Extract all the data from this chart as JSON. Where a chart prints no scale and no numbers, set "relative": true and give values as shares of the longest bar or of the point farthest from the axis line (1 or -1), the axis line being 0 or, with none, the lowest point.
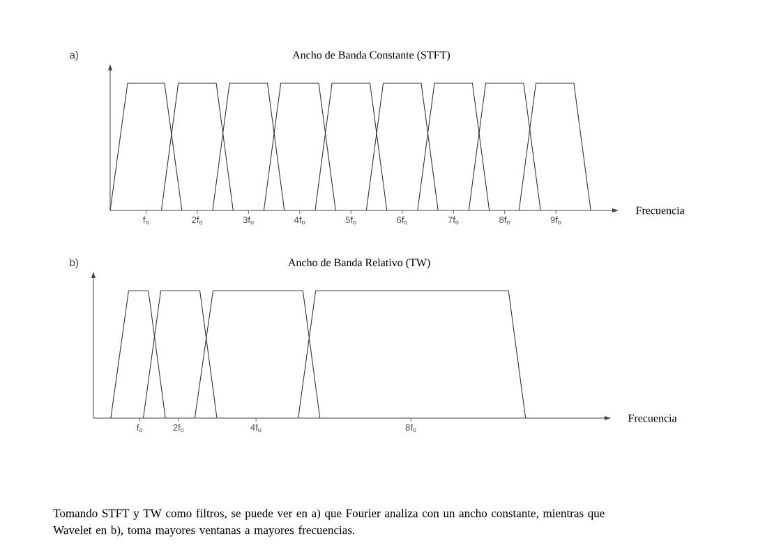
{
  "chart_data": [
    {
      "type": "line",
      "relative": true,
      "title": "Ancho de Banda Constante  (STFT)",
      "xlabel": "Frecuencia",
      "annotations": [
        "a)"
      ],
      "xlim": [
        0.3,
        10.1
      ],
      "xticks": [
        {
          "value": 1,
          "label": "f$_{o}$"
        },
        {
          "value": 2,
          "label": "2f$_{o}$"
        },
        {
          "value": 3,
          "label": "3f$_{o}$"
        },
        {
          "value": 4,
          "label": "4f$_{o}$"
        },
        {
          "value": 5,
          "label": "5f$_{o}$"
        },
        {
          "value": 6,
          "label": "6f$_{o}$"
        },
        {
          "value": 7,
          "label": "7f$_{o}$"
        },
        {
          "value": 8,
          "label": "8f$_{o}$"
        },
        {
          "value": 9,
          "label": "9f$_{o}$"
        }
      ],
      "series": [
        {
          "color": "#333333",
          "x": [
            0.3,
            0.64,
            1.36,
            1.7
          ],
          "values": [
            0,
            1,
            1,
            0
          ]
        },
        {
          "color": "#333333",
          "x": [
            1.3,
            1.63,
            2.37,
            2.7
          ],
          "values": [
            0,
            1,
            1,
            0
          ]
        },
        {
          "color": "#333333",
          "x": [
            2.3,
            2.63,
            3.37,
            3.7
          ],
          "values": [
            0,
            1,
            1,
            0
          ]
        },
        {
          "color": "#333333",
          "x": [
            3.3,
            3.63,
            4.37,
            4.7
          ],
          "values": [
            0,
            1,
            1,
            0
          ]
        },
        {
          "color": "#333333",
          "x": [
            4.3,
            4.63,
            5.37,
            5.7
          ],
          "values": [
            0,
            1,
            1,
            0
          ]
        },
        {
          "color": "#333333",
          "x": [
            5.3,
            5.63,
            6.37,
            6.7
          ],
          "values": [
            0,
            1,
            1,
            0
          ]
        },
        {
          "color": "#333333",
          "x": [
            6.3,
            6.63,
            7.37,
            7.7
          ],
          "values": [
            0,
            1,
            1,
            0
          ]
        },
        {
          "color": "#333333",
          "x": [
            7.3,
            7.63,
            8.37,
            8.7
          ],
          "values": [
            0,
            1,
            1,
            0
          ]
        },
        {
          "color": "#333333",
          "x": [
            8.28,
            8.61,
            9.35,
            9.68
          ],
          "values": [
            0,
            1,
            1,
            0
          ]
        }
      ]
    },
    {
      "type": "line",
      "relative": true,
      "title": "Ancho de Banda Relativo (TW)",
      "xlabel": "Frecuencia",
      "annotations": [
        "b)",
        "Tomando STFT y TW como filtros, se puede ver en a) que Fourier analiza con un ancho constante, mientras que Wavelet en b), toma mayores ventanas a mayores frecuencias."
      ],
      "xlim": [
        -0.2,
        13
      ],
      "xticks": [
        {
          "value": 1,
          "label": "f$_{o}$"
        },
        {
          "value": 2,
          "label": "2f$_{o}$"
        },
        {
          "value": 4,
          "label": "4f$_{o}$"
        },
        {
          "value": 8,
          "label": "8f$_{o}$"
        }
      ],
      "series": [
        {
          "color": "#333333",
          "x": [
            0.25,
            0.71,
            1.22,
            1.66
          ],
          "values": [
            0,
            1,
            1,
            0
          ]
        },
        {
          "color": "#333333",
          "x": [
            1.09,
            1.54,
            2.55,
            2.99
          ],
          "values": [
            0,
            1,
            1,
            0
          ]
        },
        {
          "color": "#333333",
          "x": [
            2.42,
            2.89,
            5.21,
            5.65
          ],
          "values": [
            0,
            1,
            1,
            0
          ]
        },
        {
          "color": "#333333",
          "x": [
            5.09,
            5.54,
            10.52,
            10.96
          ],
          "values": [
            0,
            1,
            1,
            0
          ]
        }
      ]
    }
  ]
}
